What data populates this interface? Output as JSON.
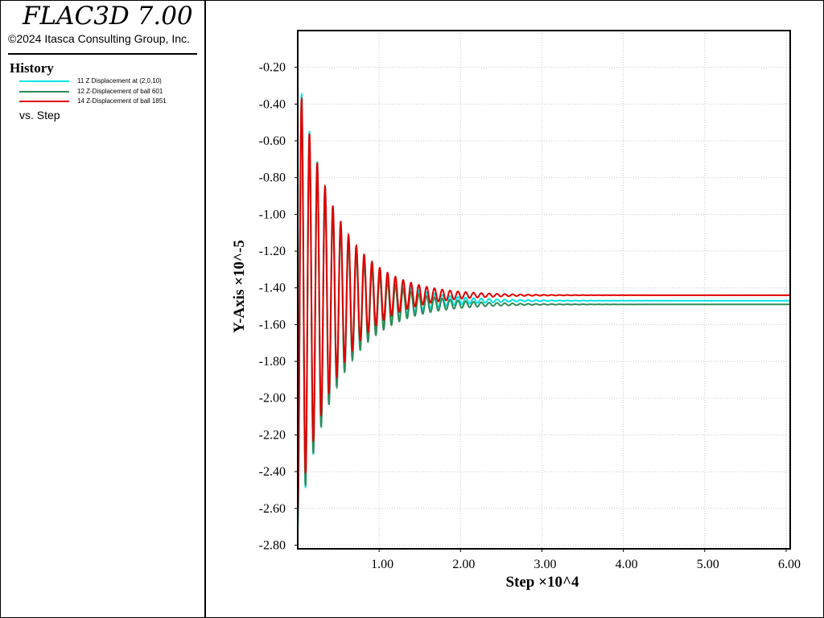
{
  "app": {
    "title": "FLAC3D 7.00",
    "copyright": "©2024 Itasca Consulting Group, Inc."
  },
  "legend": {
    "title": "History",
    "vs_label": "vs. Step",
    "items": [
      {
        "label": "11 Z Displacement at (2,0,10)",
        "color": "#00e5e5"
      },
      {
        "label": "12 Z-Displacement of ball 601",
        "color": "#2e8b57"
      },
      {
        "label": "14 Z-Displacement of ball 1851",
        "color": "#e00000"
      }
    ]
  },
  "chart_data": {
    "type": "line",
    "xlabel": "Step ×10^4",
    "ylabel": "Y-Axis ×10^-5",
    "xlim": [
      0.0,
      6.05
    ],
    "ylim": [
      -2.82,
      0.0
    ],
    "xticks": [
      "1.00",
      "2.00",
      "3.00",
      "4.00",
      "5.00",
      "6.00"
    ],
    "yticks": [
      "-0.20",
      "-0.40",
      "-0.60",
      "-0.80",
      "-1.00",
      "-1.20",
      "-1.40",
      "-1.60",
      "-1.80",
      "-2.00",
      "-2.20",
      "-2.40",
      "-2.60",
      "-2.80"
    ],
    "grid": true,
    "legend_position": "left panel",
    "series": [
      {
        "name": "11 Z Displacement at (2,0,10)",
        "color": "#00e5e5",
        "equilibrium": -1.47,
        "amplitude": 1.24,
        "period": 0.096,
        "decay": 2.05,
        "x_end": 6.05
      },
      {
        "name": "12 Z-Displacement of ball 601",
        "color": "#2e8b57",
        "equilibrium": -1.49,
        "amplitude": 1.2,
        "period": 0.096,
        "decay": 2.05,
        "x_end": 6.05
      },
      {
        "name": "14 Z-Displacement of ball 1851",
        "color": "#e00000",
        "equilibrium": -1.44,
        "amplitude": 1.18,
        "period": 0.096,
        "decay": 2.05,
        "x_end": 6.05
      }
    ]
  }
}
